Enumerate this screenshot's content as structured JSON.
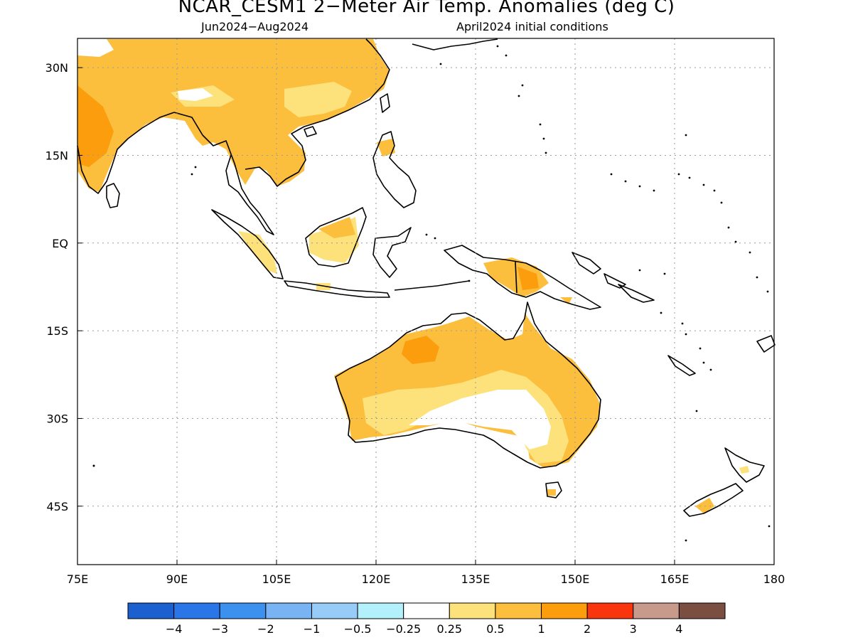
{
  "title": "NCAR_CESM1 2−Meter Air Temp. Anomalies (deg C)",
  "subtitle_left": "Jun2024−Aug2024",
  "subtitle_right": "April2024 initial conditions",
  "map": {
    "lon_range": [
      75,
      180
    ],
    "lat_range": [
      -55,
      35
    ],
    "lat_ticks": [
      {
        "value": 30,
        "label": "30N"
      },
      {
        "value": 15,
        "label": "15N"
      },
      {
        "value": 0,
        "label": "EQ"
      },
      {
        "value": -15,
        "label": "15S"
      },
      {
        "value": -30,
        "label": "30S"
      },
      {
        "value": -45,
        "label": "45S"
      }
    ],
    "lon_ticks": [
      {
        "value": 75,
        "label": "75E"
      },
      {
        "value": 90,
        "label": "90E"
      },
      {
        "value": 105,
        "label": "105E"
      },
      {
        "value": 120,
        "label": "120E"
      },
      {
        "value": 135,
        "label": "135E"
      },
      {
        "value": 150,
        "label": "150E"
      },
      {
        "value": 165,
        "label": "165E"
      },
      {
        "value": 180,
        "label": "180"
      }
    ],
    "grid": true
  },
  "colorbar": {
    "colors": [
      "#1c60d0",
      "#2a76e8",
      "#3c91ef",
      "#78b4f4",
      "#98ccf8",
      "#b2f0fb",
      "#ffffff",
      "#fde27c",
      "#fcbe3d",
      "#fb9d0d",
      "#f9350e",
      "#c79a8c",
      "#7b4e42"
    ],
    "labels": [
      "−4",
      "−3",
      "−2",
      "−1",
      "−0.5",
      "−0.25",
      "0.25",
      "0.5",
      "1",
      "2",
      "3",
      "4"
    ]
  }
}
